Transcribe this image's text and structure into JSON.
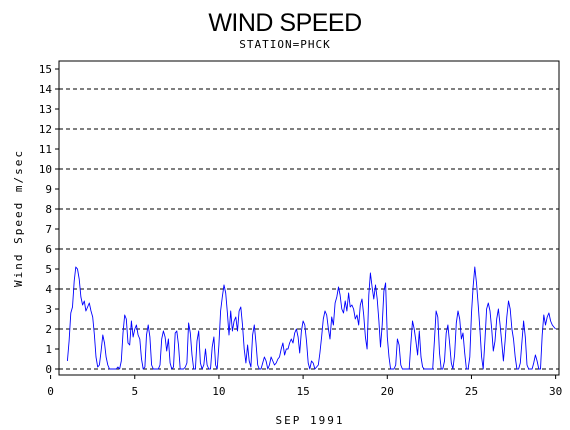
{
  "chart_data": {
    "type": "line",
    "title": "WIND SPEED",
    "subtitle": "STATION=PHCK",
    "xlabel": "SEP 1991",
    "ylabel": "Wind Speed m/sec",
    "xlim": [
      0.5,
      30.2
    ],
    "ylim": [
      -0.3,
      15.4
    ],
    "x_ticks": [
      0,
      5,
      10,
      15,
      20,
      25,
      30
    ],
    "y_ticks": [
      0,
      1,
      2,
      3,
      4,
      5,
      6,
      7,
      8,
      9,
      10,
      11,
      12,
      13,
      14,
      15
    ],
    "gridlines_y": [
      0,
      2,
      4,
      6,
      8,
      10,
      12,
      14
    ],
    "grid": "horizontal dashed at even values",
    "legend": "none",
    "line_color": "#0000ff",
    "series": [
      {
        "x": [
          1.0,
          1.1,
          1.2,
          1.3,
          1.4,
          1.5,
          1.6,
          1.7,
          1.8,
          1.9,
          2.0,
          2.1,
          2.2,
          2.3,
          2.4,
          2.5,
          2.6,
          2.7,
          2.8,
          2.9,
          3.0,
          3.1,
          3.2,
          3.3,
          3.4,
          3.5,
          3.6,
          3.7,
          3.8,
          3.9,
          4.0,
          4.1,
          4.2,
          4.3,
          4.4,
          4.5,
          4.6,
          4.7,
          4.8,
          4.9,
          5.0,
          5.1,
          5.2,
          5.3,
          5.4,
          5.5,
          5.6,
          5.7,
          5.8,
          5.9,
          6.0,
          6.1,
          6.2,
          6.3,
          6.4,
          6.5,
          6.6,
          6.7,
          6.8,
          6.9,
          7.0,
          7.1,
          7.2,
          7.3,
          7.4,
          7.5,
          7.6,
          7.7,
          7.8,
          7.9,
          8.0,
          8.1,
          8.2,
          8.3,
          8.4,
          8.5,
          8.6,
          8.7,
          8.8,
          8.9,
          9.0,
          9.1,
          9.2,
          9.3,
          9.4,
          9.5,
          9.6,
          9.7,
          9.8,
          9.9,
          10.0,
          10.1,
          10.2,
          10.3,
          10.4,
          10.5,
          10.6,
          10.7,
          10.8,
          10.9,
          11.0,
          11.1,
          11.2,
          11.3,
          11.4,
          11.5,
          11.6,
          11.7,
          11.8,
          11.9,
          12.0,
          12.1,
          12.2,
          12.3,
          12.4,
          12.5,
          12.6,
          12.7,
          12.8,
          12.9,
          13.0,
          13.1,
          13.2,
          13.3,
          13.4,
          13.5,
          13.6,
          13.7,
          13.8,
          13.9,
          14.0,
          14.1,
          14.2,
          14.3,
          14.4,
          14.5,
          14.6,
          14.7,
          14.8,
          14.9,
          15.0,
          15.1,
          15.2,
          15.3,
          15.4,
          15.5,
          15.6,
          15.7,
          15.8,
          15.9,
          16.0,
          16.1,
          16.2,
          16.3,
          16.4,
          16.5,
          16.6,
          16.7,
          16.8,
          16.9,
          17.0,
          17.1,
          17.2,
          17.3,
          17.4,
          17.5,
          17.6,
          17.7,
          17.8,
          17.9,
          18.0,
          18.1,
          18.2,
          18.3,
          18.4,
          18.5,
          18.6,
          18.7,
          18.8,
          18.9,
          19.0,
          19.1,
          19.2,
          19.3,
          19.4,
          19.5,
          19.6,
          19.7,
          19.8,
          19.9,
          20.0,
          20.1,
          20.2,
          20.3,
          20.4,
          20.5,
          20.6,
          20.7,
          20.8,
          20.9,
          21.0,
          21.1,
          21.2,
          21.3,
          21.4,
          21.5,
          21.6,
          21.7,
          21.8,
          21.9,
          22.0,
          22.1,
          22.2,
          22.3,
          22.4,
          22.5,
          22.6,
          22.7,
          22.8,
          22.9,
          23.0,
          23.1,
          23.2,
          23.3,
          23.4,
          23.5,
          23.6,
          23.7,
          23.8,
          23.9,
          24.0,
          24.1,
          24.2,
          24.3,
          24.4,
          24.5,
          24.6,
          24.7,
          24.8,
          24.9,
          25.0,
          25.1,
          25.2,
          25.3,
          25.4,
          25.5,
          25.6,
          25.7,
          25.8,
          25.9,
          26.0,
          26.1,
          26.2,
          26.3,
          26.4,
          26.5,
          26.6,
          26.7,
          26.8,
          26.9,
          27.0,
          27.1,
          27.2,
          27.3,
          27.4,
          27.5,
          27.6,
          27.7,
          27.8,
          27.9,
          28.0,
          28.1,
          28.2,
          28.3,
          28.4,
          28.5,
          28.6,
          28.7,
          28.8,
          28.9,
          29.0,
          29.1,
          29.2,
          29.3,
          29.4,
          29.5,
          29.6,
          29.7,
          29.8,
          29.9,
          30.0
        ],
        "y": [
          0.4,
          1.4,
          2.8,
          3.1,
          4.4,
          5.1,
          5.0,
          4.5,
          3.6,
          3.2,
          3.4,
          2.9,
          3.1,
          3.3,
          2.9,
          2.6,
          1.7,
          0.6,
          0.1,
          0.2,
          0.9,
          1.7,
          1.3,
          0.6,
          0.2,
          0.0,
          0.0,
          0.0,
          0.0,
          0.0,
          0.1,
          0.0,
          0.4,
          1.8,
          2.7,
          2.5,
          1.3,
          1.2,
          2.4,
          1.6,
          2.0,
          2.2,
          1.7,
          1.5,
          0.5,
          0.0,
          0.1,
          1.7,
          2.2,
          1.6,
          0.2,
          0.0,
          0.0,
          0.0,
          0.0,
          0.2,
          1.5,
          1.9,
          1.6,
          0.9,
          1.5,
          0.3,
          0.0,
          0.1,
          1.8,
          1.9,
          1.2,
          0.0,
          0.0,
          0.0,
          0.1,
          0.3,
          2.3,
          1.8,
          0.7,
          0.0,
          0.0,
          1.4,
          1.9,
          0.3,
          0.0,
          0.2,
          1.0,
          0.2,
          0.0,
          0.0,
          1.1,
          1.6,
          0.2,
          0.0,
          1.2,
          2.9,
          3.6,
          4.2,
          3.8,
          2.8,
          1.7,
          2.9,
          1.9,
          2.4,
          2.6,
          1.9,
          2.9,
          3.1,
          2.2,
          1.0,
          0.3,
          1.2,
          0.4,
          0.1,
          1.7,
          2.2,
          1.3,
          0.2,
          0.0,
          0.0,
          0.3,
          0.6,
          0.4,
          0.0,
          0.2,
          0.6,
          0.4,
          0.2,
          0.3,
          0.5,
          0.6,
          1.0,
          1.3,
          0.7,
          1.0,
          1.0,
          1.3,
          1.5,
          1.3,
          1.8,
          2.0,
          1.6,
          0.8,
          1.9,
          2.4,
          2.2,
          1.4,
          0.3,
          0.0,
          0.4,
          0.3,
          0.0,
          0.1,
          0.2,
          0.8,
          1.6,
          2.5,
          2.9,
          2.7,
          2.0,
          1.5,
          2.6,
          2.2,
          3.3,
          3.6,
          4.1,
          3.7,
          3.0,
          2.8,
          3.4,
          2.9,
          3.8,
          3.1,
          3.2,
          3.0,
          2.5,
          2.7,
          2.2,
          3.2,
          3.5,
          2.7,
          1.6,
          1.0,
          3.7,
          4.8,
          4.1,
          3.5,
          4.2,
          3.5,
          2.4,
          1.1,
          2.2,
          3.9,
          4.3,
          1.6,
          0.6,
          0.0,
          0.0,
          0.0,
          0.2,
          1.5,
          1.2,
          0.2,
          0.0,
          0.0,
          0.0,
          0.0,
          0.0,
          1.3,
          2.4,
          2.0,
          1.4,
          0.7,
          1.9,
          0.6,
          0.1,
          0.0,
          0.0,
          0.0,
          0.0,
          0.0,
          0.0,
          1.4,
          2.9,
          2.6,
          0.8,
          0.0,
          0.0,
          0.4,
          1.8,
          2.2,
          1.3,
          0.3,
          0.0,
          0.7,
          2.3,
          2.9,
          2.5,
          1.5,
          1.8,
          0.8,
          0.0,
          0.0,
          0.6,
          2.8,
          4.1,
          5.1,
          4.3,
          3.2,
          2.0,
          0.6,
          0.0,
          1.4,
          3.0,
          3.3,
          2.9,
          2.0,
          0.9,
          1.4,
          2.5,
          3.0,
          2.2,
          1.3,
          0.4,
          1.4,
          2.6,
          3.4,
          3.0,
          2.0,
          1.5,
          0.6,
          0.0,
          0.0,
          0.3,
          1.4,
          2.4,
          1.6,
          0.2,
          0.0,
          0.0,
          0.0,
          0.3,
          0.7,
          0.4,
          0.0,
          0.0,
          1.7,
          2.7,
          2.2,
          2.6,
          2.8,
          2.4,
          2.2,
          2.1,
          2.0
        ]
      }
    ]
  }
}
